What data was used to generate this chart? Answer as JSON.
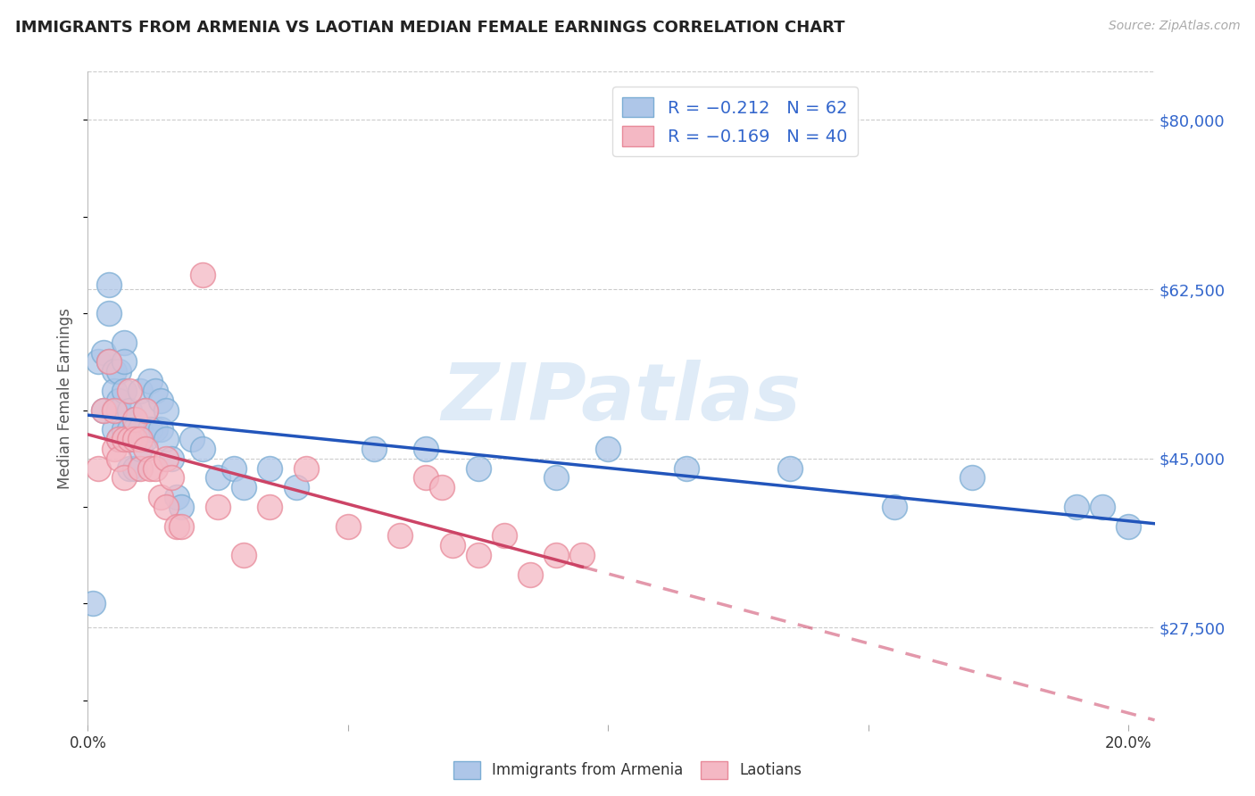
{
  "title": "IMMIGRANTS FROM ARMENIA VS LAOTIAN MEDIAN FEMALE EARNINGS CORRELATION CHART",
  "source": "Source: ZipAtlas.com",
  "ylabel": "Median Female Earnings",
  "xlim": [
    0.0,
    0.205
  ],
  "ylim": [
    17500,
    85000
  ],
  "yticks": [
    27500,
    45000,
    62500,
    80000
  ],
  "ytick_labels": [
    "$27,500",
    "$45,000",
    "$62,500",
    "$80,000"
  ],
  "xticks": [
    0.0,
    0.05,
    0.1,
    0.15,
    0.2
  ],
  "xtick_labels": [
    "0.0%",
    "",
    "",
    "",
    "20.0%"
  ],
  "legend_entries": [
    {
      "label": "R = −0.212   N = 62",
      "color": "#aec6e8"
    },
    {
      "label": "R = −0.169   N = 40",
      "color": "#f4a7b5"
    }
  ],
  "legend_footer": [
    "Immigrants from Armenia",
    "Laotians"
  ],
  "watermark": "ZIPatlas",
  "blue_scatter_color": "#aec6e8",
  "pink_scatter_color": "#f4b8c4",
  "blue_edge_color": "#7badd4",
  "pink_edge_color": "#e88a9a",
  "blue_line_color": "#2255bb",
  "pink_line_color": "#cc4466",
  "armenia_scatter_x": [
    0.001,
    0.002,
    0.003,
    0.003,
    0.004,
    0.004,
    0.004,
    0.005,
    0.005,
    0.005,
    0.005,
    0.006,
    0.006,
    0.006,
    0.006,
    0.007,
    0.007,
    0.007,
    0.007,
    0.008,
    0.008,
    0.008,
    0.008,
    0.009,
    0.009,
    0.009,
    0.009,
    0.01,
    0.01,
    0.01,
    0.011,
    0.011,
    0.012,
    0.012,
    0.013,
    0.013,
    0.014,
    0.014,
    0.015,
    0.015,
    0.016,
    0.017,
    0.018,
    0.02,
    0.022,
    0.025,
    0.028,
    0.03,
    0.035,
    0.04,
    0.055,
    0.065,
    0.075,
    0.09,
    0.1,
    0.115,
    0.135,
    0.155,
    0.17,
    0.19,
    0.195,
    0.2
  ],
  "armenia_scatter_y": [
    30000,
    55000,
    56000,
    50000,
    63000,
    60000,
    55000,
    54000,
    52000,
    50000,
    48000,
    54000,
    51000,
    50000,
    47000,
    57000,
    55000,
    52000,
    48000,
    50000,
    48000,
    47000,
    44000,
    49000,
    48000,
    47000,
    44000,
    52000,
    48000,
    46000,
    50000,
    47000,
    53000,
    48000,
    52000,
    48000,
    51000,
    48000,
    50000,
    47000,
    45000,
    41000,
    40000,
    47000,
    46000,
    43000,
    44000,
    42000,
    44000,
    42000,
    46000,
    46000,
    44000,
    43000,
    46000,
    44000,
    44000,
    40000,
    43000,
    40000,
    40000,
    38000
  ],
  "laotian_scatter_x": [
    0.002,
    0.003,
    0.004,
    0.005,
    0.005,
    0.006,
    0.006,
    0.007,
    0.007,
    0.008,
    0.008,
    0.009,
    0.009,
    0.01,
    0.01,
    0.011,
    0.011,
    0.012,
    0.013,
    0.014,
    0.015,
    0.015,
    0.016,
    0.017,
    0.018,
    0.022,
    0.025,
    0.03,
    0.035,
    0.042,
    0.05,
    0.06,
    0.065,
    0.068,
    0.07,
    0.075,
    0.08,
    0.085,
    0.09,
    0.095
  ],
  "laotian_scatter_y": [
    44000,
    50000,
    55000,
    50000,
    46000,
    47000,
    45000,
    47000,
    43000,
    52000,
    47000,
    49000,
    47000,
    47000,
    44000,
    50000,
    46000,
    44000,
    44000,
    41000,
    45000,
    40000,
    43000,
    38000,
    38000,
    64000,
    40000,
    35000,
    40000,
    44000,
    38000,
    37000,
    43000,
    42000,
    36000,
    35000,
    37000,
    33000,
    35000,
    35000
  ],
  "background_color": "#ffffff",
  "grid_color": "#cccccc",
  "title_color": "#222222",
  "axis_label_color": "#555555",
  "right_label_color": "#3366cc"
}
